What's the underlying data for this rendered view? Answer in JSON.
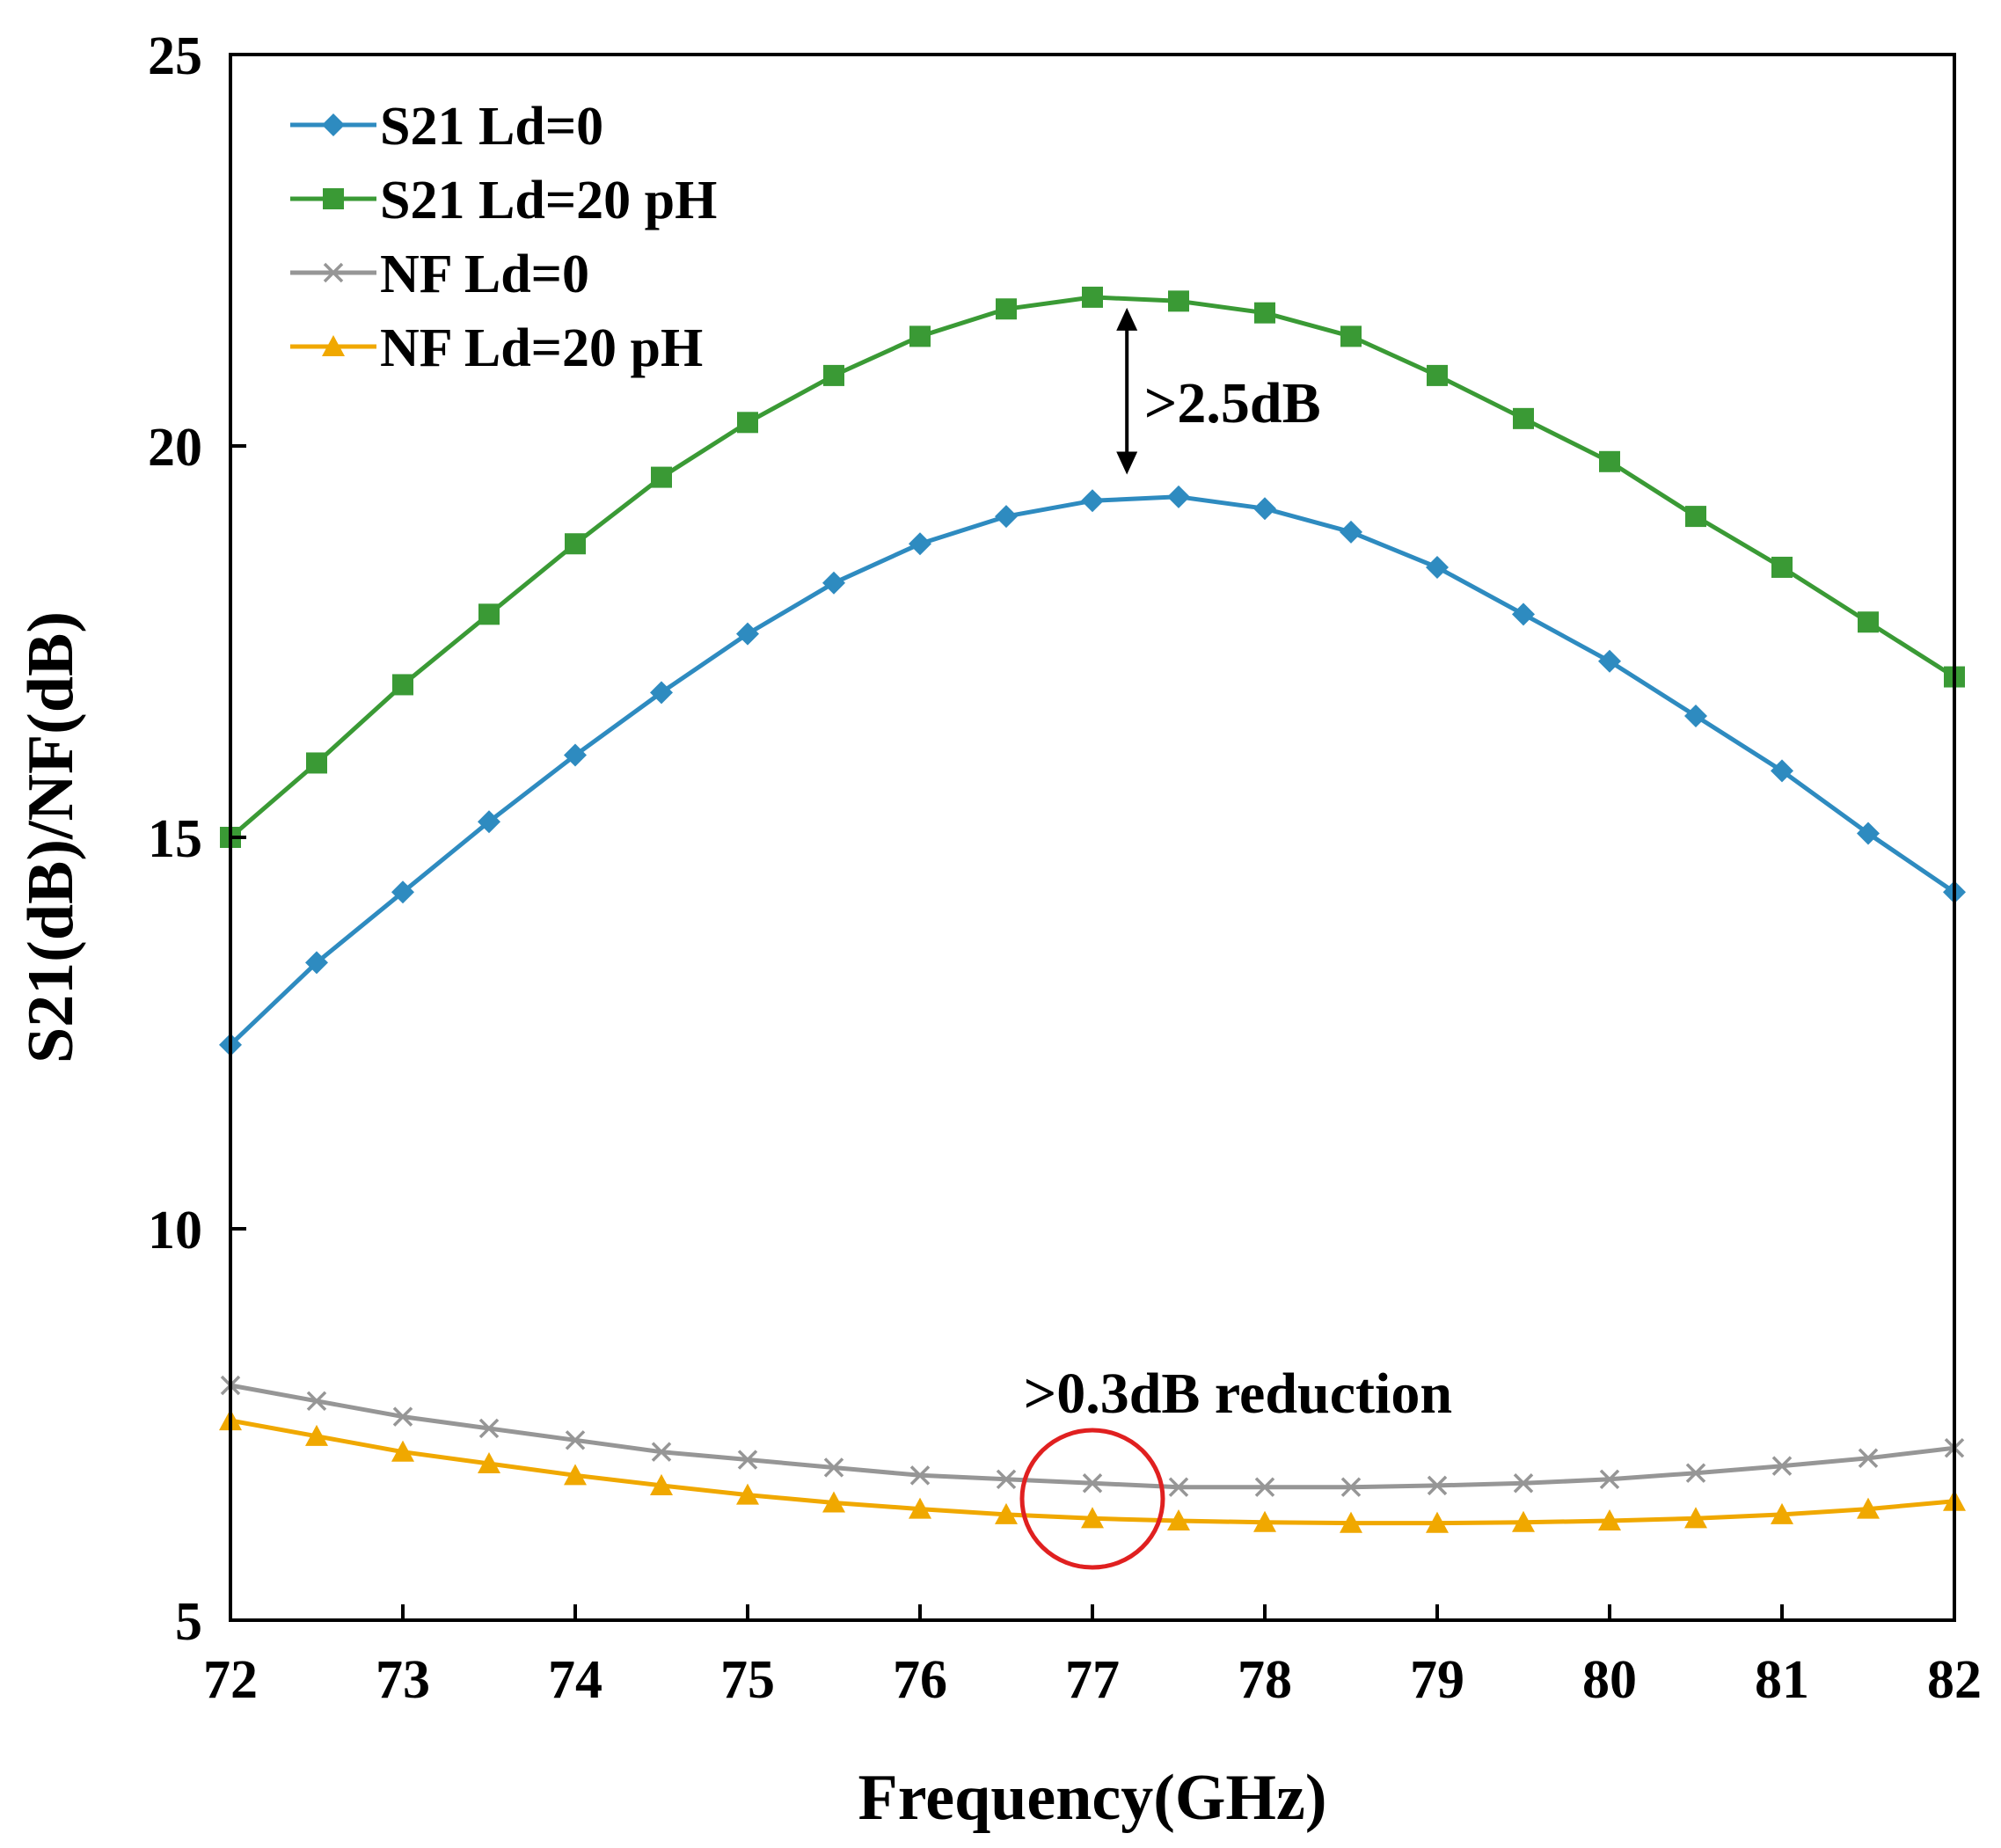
{
  "chart_data": {
    "type": "line",
    "xlabel": "Frequency(GHz)",
    "ylabel": "S21(dB)/NF(dB)",
    "xlim": [
      72,
      82
    ],
    "ylim": [
      5,
      25
    ],
    "xticks": [
      "72",
      "73",
      "74",
      "75",
      "76",
      "77",
      "78",
      "79",
      "80",
      "81",
      "82"
    ],
    "yticks": [
      "5",
      "10",
      "15",
      "20",
      "25"
    ],
    "legend_position": "top-left",
    "x": [
      72,
      72.5,
      73,
      73.5,
      74,
      74.5,
      75,
      75.5,
      76,
      76.5,
      77,
      77.5,
      78,
      78.5,
      79,
      79.5,
      80,
      80.5,
      81,
      81.5,
      82
    ],
    "series": [
      {
        "name": "S21 Ld=0",
        "color": "#2e8bc0",
        "marker": "diamond",
        "values": [
          12.35,
          13.4,
          14.3,
          15.2,
          16.05,
          16.85,
          17.6,
          18.25,
          18.75,
          19.1,
          19.3,
          19.35,
          19.2,
          18.9,
          18.45,
          17.85,
          17.25,
          16.55,
          15.85,
          15.05,
          14.3
        ]
      },
      {
        "name": "S21 Ld=20 pH",
        "color": "#3a9a35",
        "marker": "square",
        "values": [
          15.0,
          15.95,
          16.95,
          17.85,
          18.75,
          19.6,
          20.3,
          20.9,
          21.4,
          21.75,
          21.9,
          21.85,
          21.7,
          21.4,
          20.9,
          20.35,
          19.8,
          19.1,
          18.45,
          17.75,
          17.05
        ]
      },
      {
        "name": "NF Ld=0",
        "color": "#969696",
        "marker": "x",
        "values": [
          8.0,
          7.8,
          7.6,
          7.45,
          7.3,
          7.15,
          7.05,
          6.95,
          6.85,
          6.8,
          6.75,
          6.7,
          6.7,
          6.7,
          6.72,
          6.75,
          6.8,
          6.88,
          6.97,
          7.07,
          7.2
        ]
      },
      {
        "name": "NF Ld=20 pH",
        "color": "#f0a800",
        "marker": "triangle",
        "values": [
          7.55,
          7.35,
          7.15,
          7.0,
          6.85,
          6.72,
          6.6,
          6.5,
          6.42,
          6.35,
          6.3,
          6.27,
          6.25,
          6.24,
          6.24,
          6.25,
          6.27,
          6.3,
          6.35,
          6.42,
          6.52
        ]
      }
    ],
    "annotations": [
      {
        "text": ">2.5dB",
        "kind": "double-arrow",
        "x": 77.2,
        "y_from": 21.9,
        "y_to": 19.5,
        "label_x": 77.3,
        "label_y": 20.55
      },
      {
        "text": ">0.3dB reduction",
        "kind": "circle",
        "x": 77.0,
        "y": 6.55,
        "label_x": 76.6,
        "label_y": 7.9,
        "color": "#e02020"
      }
    ]
  }
}
